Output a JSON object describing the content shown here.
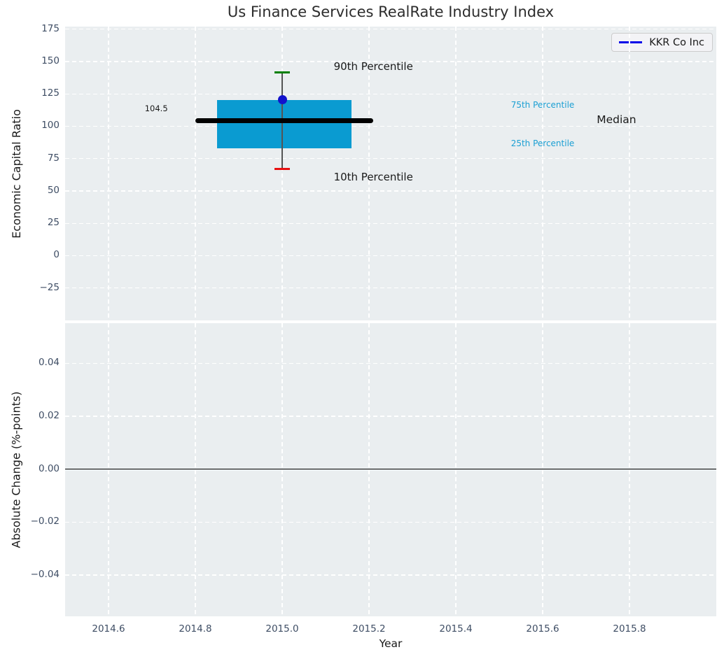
{
  "title": "Us Finance Services RealRate Industry Index",
  "legend": {
    "label": "KKR Co Inc",
    "position": "upper right"
  },
  "colors": {
    "background": "#ffffff",
    "plot_background": "#eaeef0",
    "grid": "#ffffff",
    "box": "#0a9bd1",
    "median": "#000000",
    "whisker": "#555555",
    "cap_90": "#008000",
    "cap_10": "#e81010",
    "point": "#1212cc",
    "legend_line": "#0505e8",
    "tick_label": "#3e4d64",
    "title": "#2d2d2d",
    "axis_label": "#1a1a1a",
    "percentile_label": "#1b9fd3",
    "zero_line": "#000000"
  },
  "chart_data": [
    {
      "type": "box",
      "title": "Us Finance Services RealRate Industry Index",
      "xlabel": "",
      "ylabel": "Economic Capital Ratio",
      "xlim": [
        2014.5,
        2016.0
      ],
      "ylim": [
        -50,
        177
      ],
      "grid": "white dashed on light-gray panel",
      "legend_position": "upper right",
      "xticks": [
        {
          "v": 2014.6,
          "label": "2014.6"
        },
        {
          "v": 2014.8,
          "label": "2014.8"
        },
        {
          "v": 2015.0,
          "label": "2015.0"
        },
        {
          "v": 2015.2,
          "label": "2015.2"
        },
        {
          "v": 2015.4,
          "label": "2015.4"
        },
        {
          "v": 2015.6,
          "label": "2015.6"
        },
        {
          "v": 2015.8,
          "label": "2015.8"
        }
      ],
      "yticks": [
        {
          "v": 175,
          "label": "175"
        },
        {
          "v": 150,
          "label": "150"
        },
        {
          "v": 125,
          "label": "125"
        },
        {
          "v": 100,
          "label": "100"
        },
        {
          "v": 75,
          "label": "75"
        },
        {
          "v": 50,
          "label": "50"
        },
        {
          "v": 25,
          "label": "25"
        },
        {
          "v": 0,
          "label": "0"
        },
        {
          "v": -25,
          "label": "−25"
        }
      ],
      "box": {
        "x": 2015.0,
        "box_left": 2014.85,
        "box_right": 2015.16,
        "q1": 83,
        "q3": 120.5,
        "median": 104.5,
        "median_label": "104.5",
        "median_left": 2014.8,
        "median_right": 2015.21,
        "p10": 67,
        "p90": 141.5,
        "cap_half_width": 0.018
      },
      "point": {
        "name": "KKR Co Inc",
        "x": 2015.0,
        "y": 120.5
      },
      "annotations": [
        {
          "text": "90th Percentile",
          "x": 2015.21,
          "y": 146,
          "size": 15,
          "color_key": "axis_label"
        },
        {
          "text": "10th Percentile",
          "x": 2015.21,
          "y": 61,
          "size": 15,
          "color_key": "axis_label"
        },
        {
          "text": "75th Percentile",
          "x": 2015.6,
          "y": 116.5,
          "size": 12,
          "color_key": "percentile_label"
        },
        {
          "text": "25th Percentile",
          "x": 2015.6,
          "y": 87,
          "size": 12,
          "color_key": "percentile_label"
        },
        {
          "text": "Median",
          "x": 2015.77,
          "y": 105,
          "size": 15.5,
          "color_key": "axis_label"
        },
        {
          "text": "104.5",
          "x": 2014.71,
          "y": 114,
          "size": 11.5,
          "color_key": "axis_label"
        }
      ]
    },
    {
      "type": "line",
      "title": "",
      "xlabel": "Year",
      "ylabel": "Absolute Change (%-points)",
      "xlim": [
        2014.5,
        2016.0
      ],
      "ylim": [
        -0.0556,
        0.0551
      ],
      "grid": "white dashed on light-gray panel",
      "xticks": [
        {
          "v": 2014.6,
          "label": "2014.6"
        },
        {
          "v": 2014.8,
          "label": "2014.8"
        },
        {
          "v": 2015.0,
          "label": "2015.0"
        },
        {
          "v": 2015.2,
          "label": "2015.2"
        },
        {
          "v": 2015.4,
          "label": "2015.4"
        },
        {
          "v": 2015.6,
          "label": "2015.6"
        },
        {
          "v": 2015.8,
          "label": "2015.8"
        }
      ],
      "yticks": [
        {
          "v": 0.04,
          "label": "0.04"
        },
        {
          "v": 0.02,
          "label": "0.02"
        },
        {
          "v": 0.0,
          "label": "0.00"
        },
        {
          "v": -0.02,
          "label": "−0.02"
        },
        {
          "v": -0.04,
          "label": "−0.04"
        }
      ],
      "series": [],
      "zero_line": 0.0
    }
  ]
}
